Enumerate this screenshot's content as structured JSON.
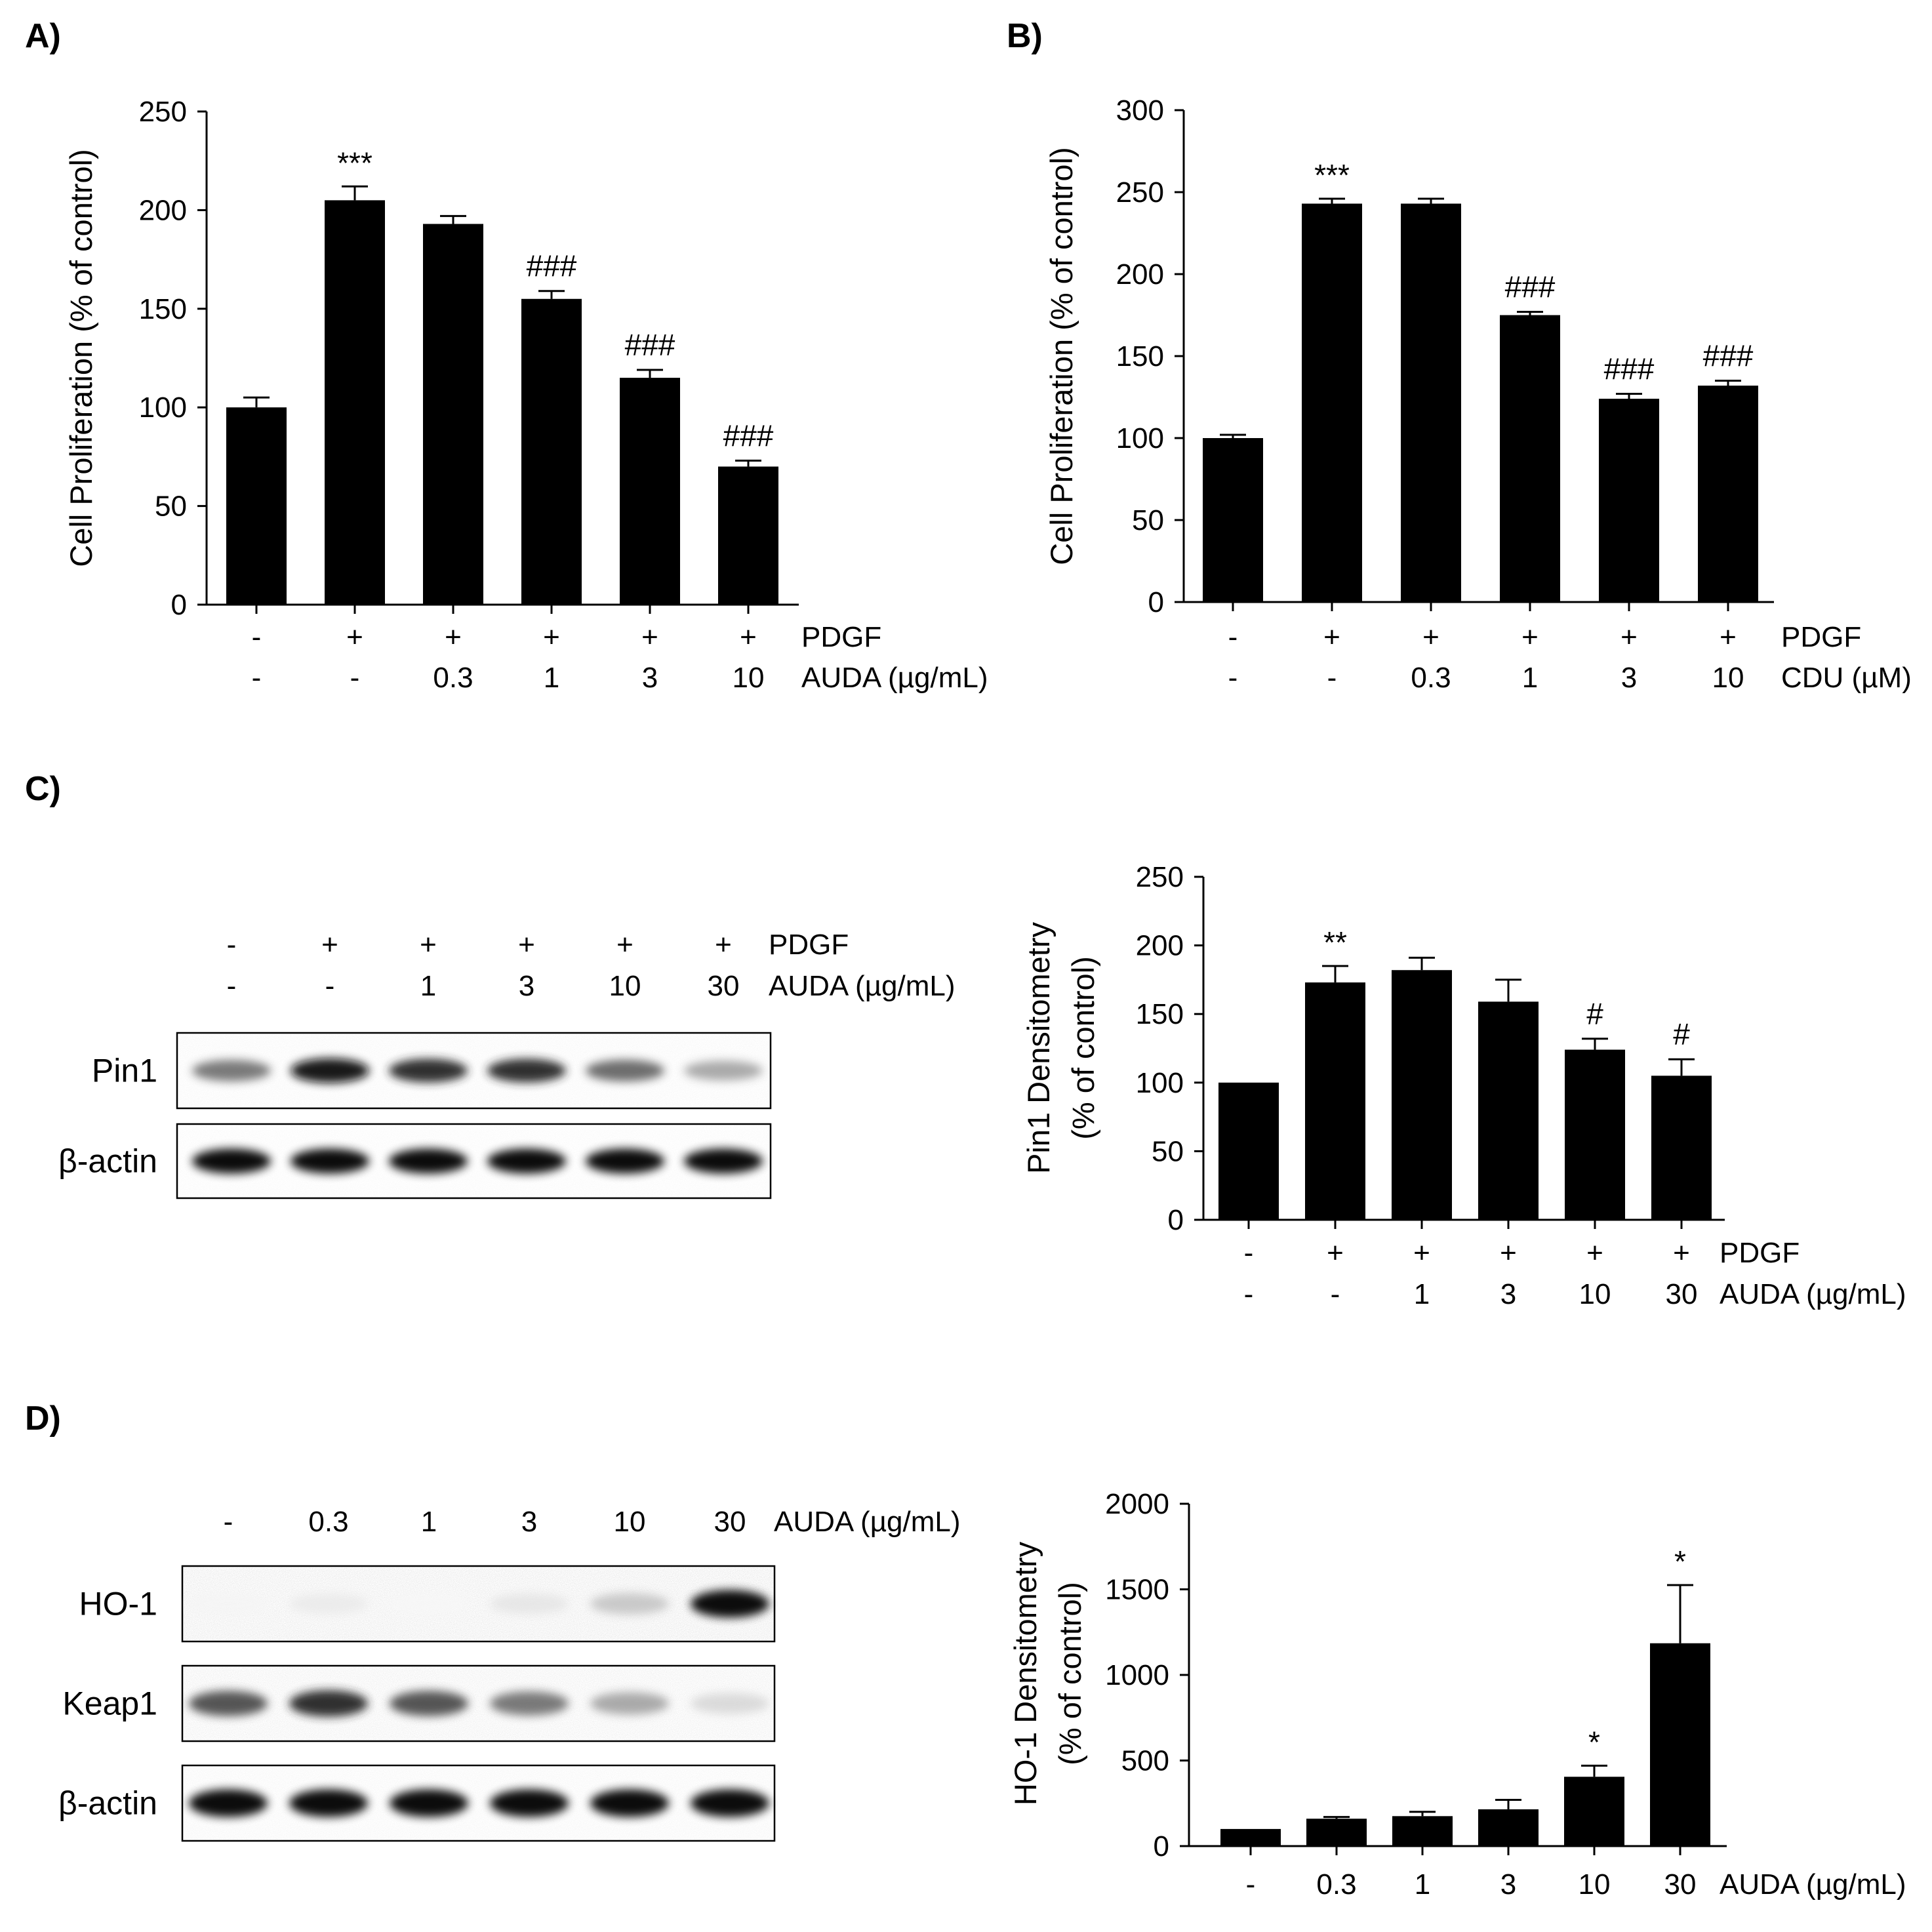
{
  "panels": {
    "A": {
      "label": "A)"
    },
    "B": {
      "label": "B)"
    },
    "C": {
      "label": "C)"
    },
    "D": {
      "label": "D)"
    }
  },
  "chart_data": [
    {
      "panel": "A",
      "type": "bar",
      "ylabel": "Cell Proliferation (% of control)",
      "ylim": [
        0,
        250
      ],
      "yticks": [
        0,
        50,
        100,
        150,
        200,
        250
      ],
      "values": [
        100,
        205,
        193,
        155,
        115,
        70
      ],
      "errors": [
        5,
        7,
        4,
        4,
        4,
        3
      ],
      "sig": [
        "",
        "***",
        "",
        "###",
        "###",
        "###"
      ],
      "conditions": [
        {
          "name": "PDGF",
          "labels": [
            "-",
            "+",
            "+",
            "+",
            "+",
            "+"
          ]
        },
        {
          "name": "AUDA (µg/mL)",
          "labels": [
            "-",
            "-",
            "0.3",
            "1",
            "3",
            "10"
          ]
        }
      ]
    },
    {
      "panel": "B",
      "type": "bar",
      "ylabel": "Cell Proliferation (% of control)",
      "ylim": [
        0,
        300
      ],
      "yticks": [
        0,
        50,
        100,
        150,
        200,
        250,
        300
      ],
      "values": [
        100,
        243,
        243,
        175,
        124,
        132
      ],
      "errors": [
        2,
        3,
        3,
        2,
        3,
        3
      ],
      "sig": [
        "",
        "***",
        "",
        "###",
        "###",
        "###"
      ],
      "conditions": [
        {
          "name": "PDGF",
          "labels": [
            "-",
            "+",
            "+",
            "+",
            "+",
            "+"
          ]
        },
        {
          "name": "CDU (µM)",
          "labels": [
            "-",
            "-",
            "0.3",
            "1",
            "3",
            "10"
          ]
        }
      ]
    },
    {
      "panel": "C",
      "type": "bar",
      "ylabel": [
        "Pin1 Densitometry",
        "(% of control)"
      ],
      "ylim": [
        0,
        250
      ],
      "yticks": [
        0,
        50,
        100,
        150,
        200,
        250
      ],
      "values": [
        100,
        173,
        182,
        159,
        124,
        105
      ],
      "errors": [
        0,
        12,
        9,
        16,
        8,
        12
      ],
      "sig": [
        "",
        "**",
        "",
        "",
        "#",
        "#"
      ],
      "conditions": [
        {
          "name": "PDGF",
          "labels": [
            "-",
            "+",
            "+",
            "+",
            "+",
            "+"
          ]
        },
        {
          "name": "AUDA (µg/mL)",
          "labels": [
            "-",
            "-",
            "1",
            "3",
            "10",
            "30"
          ]
        }
      ]
    },
    {
      "panel": "D",
      "type": "bar",
      "ylabel": [
        "HO-1 Densitometry",
        "(% of control)"
      ],
      "ylim": [
        0,
        2000
      ],
      "yticks": [
        0,
        500,
        1000,
        1500,
        2000
      ],
      "values": [
        100,
        160,
        175,
        215,
        405,
        1185
      ],
      "errors": [
        0,
        10,
        25,
        55,
        65,
        340
      ],
      "sig": [
        "",
        "",
        "",
        "",
        "*",
        "*"
      ],
      "conditions": [
        {
          "name": "AUDA (µg/mL)",
          "labels": [
            "-",
            "0.3",
            "1",
            "3",
            "10",
            "30"
          ]
        }
      ]
    }
  ],
  "blots": {
    "C": {
      "conditions": [
        {
          "name": "PDGF",
          "labels": [
            "-",
            "+",
            "+",
            "+",
            "+",
            "+"
          ]
        },
        {
          "name": "AUDA (µg/mL)",
          "labels": [
            "-",
            "-",
            "1",
            "3",
            "10",
            "30"
          ]
        }
      ],
      "rows": [
        {
          "name": "Pin1",
          "intensity": [
            0.55,
            0.95,
            0.85,
            0.85,
            0.6,
            0.35
          ],
          "noise": 0.05
        },
        {
          "name": "β-actin",
          "intensity": [
            1,
            1,
            1,
            1,
            1,
            1
          ],
          "noise": 0.04
        }
      ]
    },
    "D": {
      "conditions": [
        {
          "name": "AUDA (µg/mL)",
          "labels": [
            "-",
            "0.3",
            "1",
            "3",
            "10",
            "30"
          ]
        }
      ],
      "rows": [
        {
          "name": "HO-1",
          "intensity": [
            0.04,
            0.08,
            0.03,
            0.1,
            0.22,
            1
          ],
          "noise": 0.14
        },
        {
          "name": "Keap1",
          "intensity": [
            0.7,
            0.85,
            0.7,
            0.55,
            0.35,
            0.15
          ],
          "noise": 0.1
        },
        {
          "name": "β-actin",
          "intensity": [
            1,
            1,
            1,
            1,
            1,
            1
          ],
          "noise": 0.06
        }
      ]
    }
  }
}
